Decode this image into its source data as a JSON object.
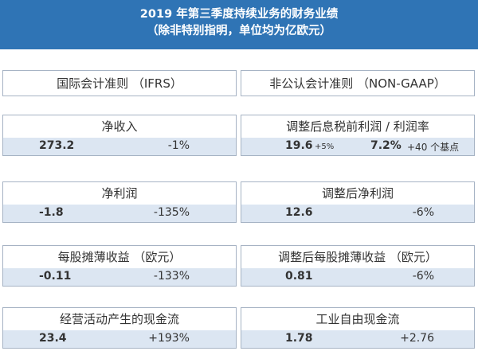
{
  "header": {
    "title": "2019 年第三季度持续业务的财务业绩",
    "subtitle": "（除非特别指明，单位均为亿欧元）"
  },
  "left_standard_label": "国际会计准则 （IFRS）",
  "right_standard_label": "非公认会计准则 （NON-GAAP）",
  "metrics": {
    "revenue": {
      "label": "净收入",
      "value": "273.2",
      "change": "-1%"
    },
    "ebit": {
      "label": "调整后息税前利润 / 利润率",
      "value": "19.6",
      "value_change": "+5%",
      "margin": "7.2%",
      "margin_change": "+40 个基点"
    },
    "net_income": {
      "label": "净利润",
      "value": "-1.8",
      "change": "-135%"
    },
    "adj_net_income": {
      "label": "调整后净利润",
      "value": "12.6",
      "change": "-6%"
    },
    "eps": {
      "label": "每股摊薄收益 （欧元）",
      "value": "-0.11",
      "change": "-133%"
    },
    "adj_eps": {
      "label": "调整后每股摊薄收益 （欧元）",
      "value": "0.81",
      "change": "-6%"
    },
    "ocf": {
      "label": "经营活动产生的现金流",
      "value": "23.4",
      "change": "+193%"
    },
    "fcf": {
      "label": "工业自由现金流",
      "value": "1.78",
      "change": "+2.76"
    }
  }
}
